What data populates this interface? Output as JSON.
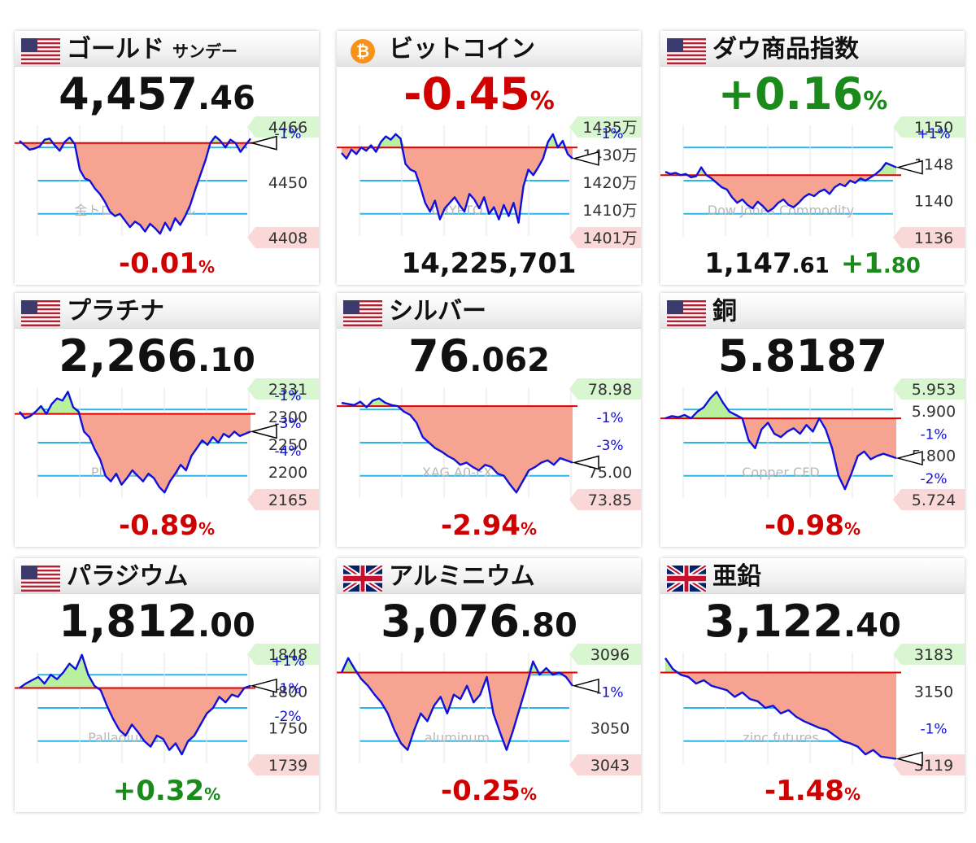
{
  "colors": {
    "up": "#1a8a1a",
    "down": "#d10000",
    "line": "#1010dd",
    "baseline": "#e00000",
    "fill_down": "#f6a392",
    "fill_up": "#b8f0a0",
    "grid": "#29b6e8"
  },
  "panels": [
    {
      "flag": "us-flag-icon",
      "title": "ゴールド",
      "subtitle": "サンデー",
      "price_main": "4,457",
      "price_dec": ".46",
      "watermark": "金トロイオンス/ドル",
      "ticks": [
        "4466",
        "4450",
        "4408"
      ],
      "pcts": [
        "-1%"
      ],
      "change_num": "-0.01",
      "change_unit": "%",
      "direction": "down",
      "series": [
        0.86,
        0.82,
        0.78,
        0.79,
        0.81,
        0.87,
        0.88,
        0.82,
        0.77,
        0.85,
        0.89,
        0.83,
        0.6,
        0.52,
        0.5,
        0.43,
        0.38,
        0.31,
        0.22,
        0.18,
        0.2,
        0.14,
        0.08,
        0.13,
        0.1,
        0.04,
        0.11,
        0.07,
        0.02,
        0.12,
        0.05,
        0.16,
        0.1,
        0.18,
        0.28,
        0.42,
        0.55,
        0.68,
        0.84,
        0.9,
        0.86,
        0.8,
        0.87,
        0.84,
        0.76,
        0.82,
        0.88
      ],
      "baseline": 0.84,
      "end": 0.84
    },
    {
      "flag": "bitcoin-icon",
      "title": "ビットコイン",
      "price_main": "-0.45",
      "price_unit": "%",
      "price_color": "down",
      "watermark": "CRYPTO",
      "ticks": [
        "1435万",
        "1430万",
        "1420万",
        "1410万",
        "1401万"
      ],
      "pcts": [
        "-1%"
      ],
      "footer_price": "14,225,701",
      "series": [
        0.75,
        0.7,
        0.78,
        0.74,
        0.8,
        0.77,
        0.82,
        0.76,
        0.85,
        0.9,
        0.87,
        0.92,
        0.88,
        0.65,
        0.6,
        0.58,
        0.45,
        0.3,
        0.22,
        0.32,
        0.15,
        0.25,
        0.3,
        0.35,
        0.28,
        0.22,
        0.38,
        0.33,
        0.25,
        0.35,
        0.2,
        0.26,
        0.15,
        0.28,
        0.18,
        0.3,
        0.12,
        0.45,
        0.6,
        0.55,
        0.62,
        0.7,
        0.85,
        0.92,
        0.8,
        0.86,
        0.74,
        0.7
      ],
      "baseline": 0.8,
      "end": 0.7
    },
    {
      "flag": "us-flag-icon",
      "title": "ダウ商品指数",
      "price_main": "+0.16",
      "price_unit": "%",
      "price_color": "up",
      "watermark": "Dow Jones Commodity",
      "ticks": [
        "1150",
        "1148",
        "1140",
        "1136"
      ],
      "pcts": [
        "+1%"
      ],
      "footer_price_main": "1,147",
      "footer_price_dec": ".61",
      "footer_change_main": "+1",
      "footer_change_dec": ".80",
      "series": [
        0.58,
        0.56,
        0.57,
        0.55,
        0.56,
        0.53,
        0.54,
        0.62,
        0.55,
        0.52,
        0.48,
        0.44,
        0.42,
        0.35,
        0.3,
        0.33,
        0.28,
        0.25,
        0.31,
        0.27,
        0.22,
        0.25,
        0.3,
        0.33,
        0.28,
        0.26,
        0.3,
        0.35,
        0.38,
        0.36,
        0.4,
        0.42,
        0.38,
        0.44,
        0.47,
        0.45,
        0.5,
        0.48,
        0.52,
        0.5,
        0.53,
        0.56,
        0.6,
        0.66,
        0.64,
        0.62
      ],
      "baseline": 0.55,
      "end": 0.62
    },
    {
      "flag": "us-flag-icon",
      "title": "プラチナ",
      "price_main": "2,266",
      "price_dec": ".10",
      "watermark": "Platinum CFD",
      "ticks": [
        "2331",
        "2300",
        "2250",
        "2200",
        "2165"
      ],
      "pcts": [
        "-1%",
        "-3%",
        "-4%"
      ],
      "change_num": "-0.89",
      "change_unit": "%",
      "direction": "down",
      "series": [
        0.78,
        0.72,
        0.74,
        0.78,
        0.83,
        0.76,
        0.85,
        0.9,
        0.88,
        0.96,
        0.82,
        0.78,
        0.6,
        0.55,
        0.44,
        0.35,
        0.2,
        0.15,
        0.22,
        0.12,
        0.18,
        0.25,
        0.2,
        0.15,
        0.22,
        0.18,
        0.1,
        0.05,
        0.15,
        0.22,
        0.3,
        0.25,
        0.38,
        0.45,
        0.52,
        0.48,
        0.55,
        0.5,
        0.58,
        0.55,
        0.6,
        0.56,
        0.58,
        0.6
      ],
      "baseline": 0.76,
      "end": 0.6
    },
    {
      "flag": "us-flag-icon",
      "title": "シルバー",
      "price_main": "76",
      "price_dec": ".062",
      "watermark": "XAG A0-FX",
      "ticks": [
        "78.98",
        "-1%",
        "-3%",
        "75.00",
        "73.85"
      ],
      "pcts": [],
      "change_num": "-2.94",
      "change_unit": "%",
      "direction": "down",
      "series": [
        0.86,
        0.85,
        0.84,
        0.87,
        0.82,
        0.88,
        0.9,
        0.86,
        0.84,
        0.83,
        0.78,
        0.75,
        0.68,
        0.55,
        0.5,
        0.45,
        0.42,
        0.38,
        0.35,
        0.3,
        0.32,
        0.28,
        0.25,
        0.3,
        0.28,
        0.22,
        0.2,
        0.12,
        0.05,
        0.15,
        0.25,
        0.28,
        0.32,
        0.34,
        0.3,
        0.36,
        0.34,
        0.32
      ],
      "baseline": 0.83,
      "end": 0.32
    },
    {
      "flag": "us-flag-icon",
      "title": "銅",
      "price_main": "5.8187",
      "watermark": "Copper CFD",
      "ticks": [
        "5.953",
        "5.900",
        "-1%",
        "5.800",
        "-2%",
        "5.724"
      ],
      "pcts": [],
      "change_num": "-0.98",
      "change_unit": "%",
      "direction": "down",
      "series": [
        0.72,
        0.74,
        0.73,
        0.75,
        0.72,
        0.78,
        0.82,
        0.9,
        0.96,
        0.86,
        0.78,
        0.75,
        0.72,
        0.52,
        0.45,
        0.62,
        0.68,
        0.58,
        0.55,
        0.6,
        0.63,
        0.58,
        0.66,
        0.6,
        0.72,
        0.62,
        0.45,
        0.2,
        0.08,
        0.22,
        0.38,
        0.42,
        0.35,
        0.38,
        0.4,
        0.38,
        0.36
      ],
      "baseline": 0.72,
      "end": 0.36
    },
    {
      "flag": "us-flag-icon",
      "title": "パラジウム",
      "price_main": "1,812",
      "price_dec": ".00",
      "watermark": "Palladium CFD",
      "ticks": [
        "1848",
        "1800",
        "1750",
        "1739"
      ],
      "pcts": [
        "+1%",
        "-1%",
        "-2%"
      ],
      "change_num": "+0.32",
      "change_unit": "%",
      "direction": "up",
      "series": [
        0.68,
        0.72,
        0.75,
        0.78,
        0.72,
        0.8,
        0.76,
        0.82,
        0.9,
        0.85,
        0.98,
        0.8,
        0.7,
        0.66,
        0.52,
        0.4,
        0.3,
        0.25,
        0.35,
        0.28,
        0.2,
        0.15,
        0.25,
        0.22,
        0.12,
        0.18,
        0.08,
        0.2,
        0.25,
        0.35,
        0.45,
        0.5,
        0.6,
        0.55,
        0.62,
        0.6,
        0.68,
        0.7
      ],
      "baseline": 0.68,
      "end": 0.7
    },
    {
      "flag": "uk-flag-icon",
      "title": "アルミニウム",
      "price_main": "3,076",
      "price_dec": ".80",
      "watermark": "aluminum",
      "ticks": [
        "3096",
        "-1%",
        "3050",
        "3043"
      ],
      "pcts": [],
      "change_num": "-0.25",
      "change_unit": "%",
      "direction": "down",
      "series": [
        0.82,
        0.95,
        0.85,
        0.76,
        0.7,
        0.62,
        0.55,
        0.45,
        0.3,
        0.18,
        0.12,
        0.3,
        0.45,
        0.38,
        0.52,
        0.6,
        0.45,
        0.62,
        0.58,
        0.7,
        0.55,
        0.62,
        0.78,
        0.45,
        0.28,
        0.12,
        0.3,
        0.5,
        0.7,
        0.92,
        0.8,
        0.86,
        0.8,
        0.82,
        0.78,
        0.7
      ],
      "baseline": 0.82,
      "end": 0.7
    },
    {
      "flag": "uk-flag-icon",
      "title": "亜鉛",
      "price_main": "3,122",
      "price_dec": ".40",
      "watermark": "zinc futures",
      "ticks": [
        "3183",
        "3150",
        "-1%",
        "3119"
      ],
      "pcts": [],
      "change_num": "-1.48",
      "change_unit": "%",
      "direction": "down",
      "series": [
        0.95,
        0.85,
        0.8,
        0.78,
        0.72,
        0.75,
        0.7,
        0.68,
        0.66,
        0.6,
        0.64,
        0.58,
        0.56,
        0.5,
        0.52,
        0.45,
        0.48,
        0.42,
        0.38,
        0.35,
        0.32,
        0.3,
        0.25,
        0.2,
        0.18,
        0.15,
        0.08,
        0.12,
        0.06,
        0.05,
        0.04
      ],
      "baseline": 0.82,
      "end": 0.04
    }
  ]
}
